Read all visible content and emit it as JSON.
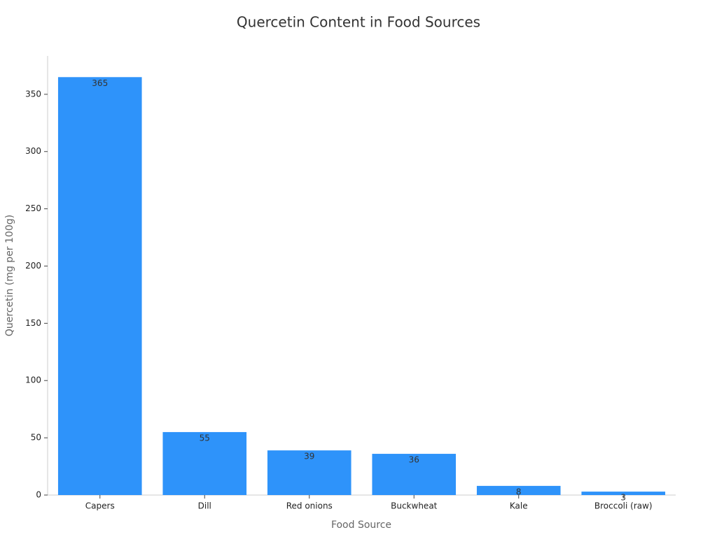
{
  "chart_data": {
    "type": "bar",
    "title": "Quercetin Content in Food Sources",
    "x_label": "Food Source",
    "y_label": "Quercetin (mg per 100g)",
    "categories": [
      "Capers",
      "Dill",
      "Red onions",
      "Buckwheat",
      "Kale",
      "Broccoli (raw)"
    ],
    "values": [
      365,
      55,
      39,
      36,
      8,
      3
    ],
    "color": "#2e93fa",
    "ylim": [
      0,
      383.5
    ],
    "yticks": [
      0,
      50,
      100,
      150,
      200,
      250,
      300,
      350
    ],
    "grid": false
  }
}
